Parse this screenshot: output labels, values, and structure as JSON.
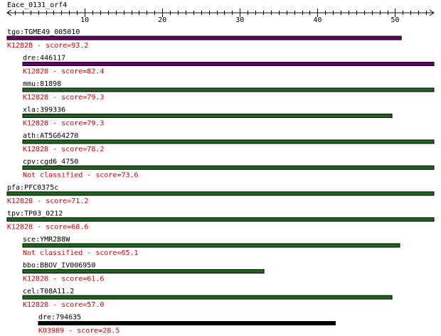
{
  "query": {
    "name": "Eace_0131_orf4",
    "length": 55
  },
  "colors": {
    "score_text": "#dd0000",
    "axis": "#000000",
    "bar_outline": "#000000"
  },
  "axis": {
    "min": 0,
    "max": 55,
    "major_ticks": [
      10,
      20,
      30,
      40,
      50
    ],
    "tick_labels": [
      "10",
      "20",
      "30",
      "40",
      "50"
    ]
  },
  "hits": [
    {
      "label": "tgo:TGME49_005010",
      "score_text": "K12828 - score=93.2",
      "start": 0,
      "end": 50.8,
      "indent": 0,
      "bar_color": "#660066"
    },
    {
      "label": "dre:446117",
      "score_text": "K12828 - score=82.4",
      "start": 0,
      "end": 55,
      "indent": 1,
      "bar_color": "#660066"
    },
    {
      "label": "mmu:81898",
      "score_text": "K12828 - score=79.3",
      "start": 0,
      "end": 55,
      "indent": 1,
      "bar_color": "#1e661e"
    },
    {
      "label": "xla:399336",
      "score_text": "K12828 - score=79.3",
      "start": 0,
      "end": 49.6,
      "indent": 1,
      "bar_color": "#1e661e"
    },
    {
      "label": "ath:AT5G64270",
      "score_text": "K12828 - score=78.2",
      "start": 0,
      "end": 55,
      "indent": 1,
      "bar_color": "#1e661e"
    },
    {
      "label": "cpv:cgd6_4750",
      "score_text": "Not classified - score=73.6",
      "start": 0,
      "end": 55,
      "indent": 1,
      "bar_color": "#1e661e"
    },
    {
      "label": "pfa:PFC0375c",
      "score_text": "K12828 - score=71.2",
      "start": 0,
      "end": 55,
      "indent": 0,
      "bar_color": "#1e661e"
    },
    {
      "label": "tpv:TP03_0212",
      "score_text": "K12828 - score=68.6",
      "start": 0,
      "end": 55,
      "indent": 0,
      "bar_color": "#1e661e"
    },
    {
      "label": "sce:YMR288W",
      "score_text": "Not classified - score=65.1",
      "start": 0,
      "end": 50.6,
      "indent": 1,
      "bar_color": "#1e661e"
    },
    {
      "label": "bbo:BBOV_IV006950",
      "score_text": "K12828 - score=61.6",
      "start": 0,
      "end": 33.1,
      "indent": 1,
      "bar_color": "#1e661e"
    },
    {
      "label": "cel:T08A11.2",
      "score_text": "K12828 - score=57.0",
      "start": 0,
      "end": 49.6,
      "indent": 1,
      "bar_color": "#1e661e"
    },
    {
      "label": "dre:794635",
      "score_text": "K03989 - score=28.5",
      "start": 3,
      "end": 42.3,
      "indent": 2,
      "bar_color": "#000000"
    }
  ]
}
